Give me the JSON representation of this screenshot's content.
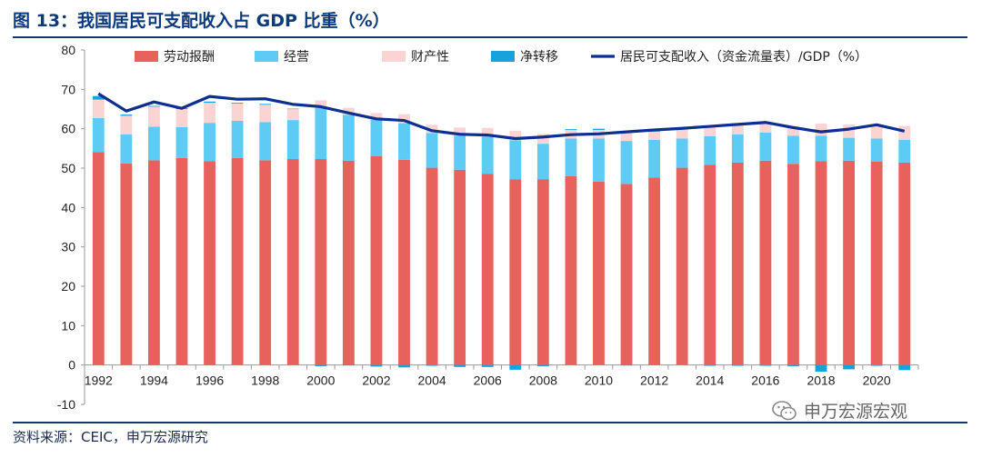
{
  "title": "图 13：我国居民可支配收入占 GDP 比重（%）",
  "source": "资料来源：CEIC，申万宏源研究",
  "watermark": "申万宏源宏观",
  "chart_data": {
    "type": "bar",
    "stacked": true,
    "years": [
      1992,
      1993,
      1994,
      1995,
      1996,
      1997,
      1998,
      1999,
      2000,
      2001,
      2002,
      2003,
      2004,
      2005,
      2006,
      2007,
      2008,
      2009,
      2010,
      2011,
      2012,
      2013,
      2014,
      2015,
      2016,
      2017,
      2018,
      2019,
      2020,
      2021
    ],
    "x_tick_labels": [
      "1992",
      "1994",
      "1996",
      "1998",
      "2000",
      "2002",
      "2004",
      "2006",
      "2008",
      "2010",
      "2012",
      "2014",
      "2016",
      "2018",
      "2020"
    ],
    "ylim": [
      -10,
      80
    ],
    "y_ticks": [
      -10,
      0,
      10,
      20,
      30,
      40,
      50,
      60,
      70,
      80
    ],
    "legend_position": "top",
    "grid": false,
    "series": [
      {
        "name": "劳动报酬",
        "kind": "bar",
        "color": "#e8625d",
        "values": [
          54.1,
          51.2,
          52.0,
          52.6,
          51.8,
          52.6,
          52.0,
          52.3,
          52.3,
          51.9,
          53.0,
          52.1,
          50.1,
          49.6,
          48.5,
          47.2,
          47.2,
          48.0,
          46.6,
          46.0,
          47.6,
          50.1,
          50.8,
          51.4,
          51.9,
          51.1,
          51.8,
          51.9,
          51.7,
          51.4
        ]
      },
      {
        "name": "经营",
        "kind": "bar",
        "color": "#5ecbf5",
        "values": [
          8.6,
          7.4,
          8.5,
          7.8,
          9.7,
          9.4,
          9.7,
          9.9,
          13.0,
          11.6,
          9.3,
          9.3,
          8.8,
          8.6,
          9.5,
          9.9,
          9.0,
          9.5,
          10.9,
          10.9,
          9.6,
          7.4,
          7.3,
          7.2,
          7.1,
          7.1,
          6.4,
          5.8,
          5.8,
          5.8
        ]
      },
      {
        "name": "财产性",
        "kind": "bar",
        "color": "#f9d4d3",
        "values": [
          4.7,
          4.7,
          5.1,
          4.6,
          5.1,
          4.4,
          4.4,
          2.8,
          1.9,
          1.8,
          1.7,
          2.3,
          2.1,
          2.1,
          2.2,
          2.4,
          2.5,
          2.2,
          2.2,
          2.1,
          2.2,
          2.5,
          2.5,
          2.3,
          2.4,
          2.5,
          3.1,
          3.4,
          3.1,
          3.5
        ]
      },
      {
        "name": "净转移",
        "kind": "bar",
        "color": "#17a2db",
        "values": [
          0.9,
          0.3,
          0.2,
          0.2,
          0.3,
          0.2,
          0.2,
          0.1,
          -0.3,
          -0.1,
          -0.4,
          -0.6,
          -0.2,
          -0.5,
          -0.5,
          -1.2,
          -0.3,
          0.2,
          0.3,
          -0.1,
          0.0,
          0.0,
          -0.2,
          -0.2,
          -0.2,
          -0.3,
          -1.7,
          -1.1,
          -0.2,
          -1.3
        ]
      },
      {
        "name": "居民可支配收入（资金流量表）/GDP（%）",
        "kind": "line",
        "color": "#0d2f8f",
        "values": [
          68.9,
          64.5,
          66.8,
          65.2,
          68.2,
          67.5,
          67.6,
          66.2,
          65.6,
          64.0,
          62.5,
          62.1,
          59.5,
          58.6,
          58.4,
          57.5,
          57.9,
          58.5,
          58.7,
          59.2,
          59.7,
          60.1,
          60.6,
          61.1,
          61.6,
          60.3,
          59.2,
          59.9,
          61.0,
          59.4
        ]
      }
    ]
  }
}
